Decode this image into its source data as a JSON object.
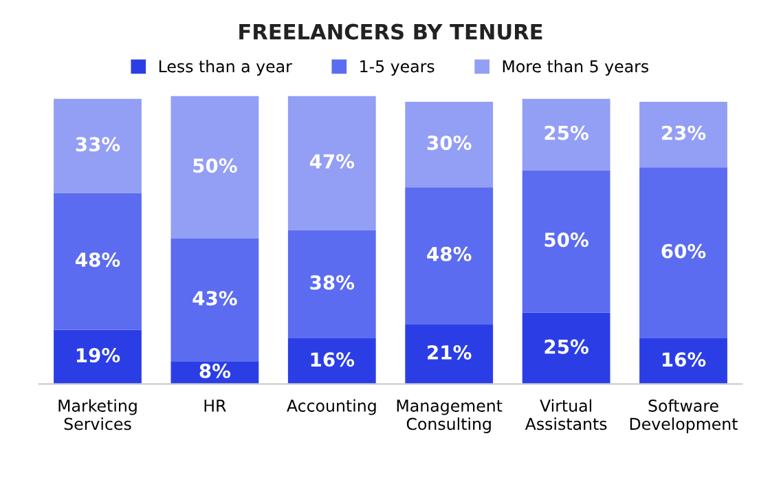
{
  "chart_data": {
    "type": "bar",
    "title": "FREELANCERS BY TENURE",
    "stacked": true,
    "legend": "top",
    "grid": false,
    "categories": [
      "Marketing\nServices",
      "HR",
      "Accounting",
      "Management\nConsulting",
      "Virtual\nAssistants",
      "Software\nDevelopment"
    ],
    "series": [
      {
        "name": "Less than a year",
        "color": "#2b3ee6",
        "values": [
          19,
          8,
          16,
          21,
          25,
          16
        ],
        "value_labels": [
          "19%",
          "8%",
          "16%",
          "21%",
          "25%",
          "16%"
        ]
      },
      {
        "name": "1-5 years",
        "color": "#5b6cf0",
        "values": [
          48,
          43,
          38,
          48,
          50,
          60
        ],
        "value_labels": [
          "48%",
          "43%",
          "38%",
          "48%",
          "50%",
          "60%"
        ]
      },
      {
        "name": "More than 5 years",
        "color": "#939ef5",
        "values": [
          33,
          50,
          47,
          30,
          25,
          23
        ],
        "value_labels": [
          "33%",
          "50%",
          "47%",
          "30%",
          "25%",
          "23%"
        ]
      }
    ]
  }
}
